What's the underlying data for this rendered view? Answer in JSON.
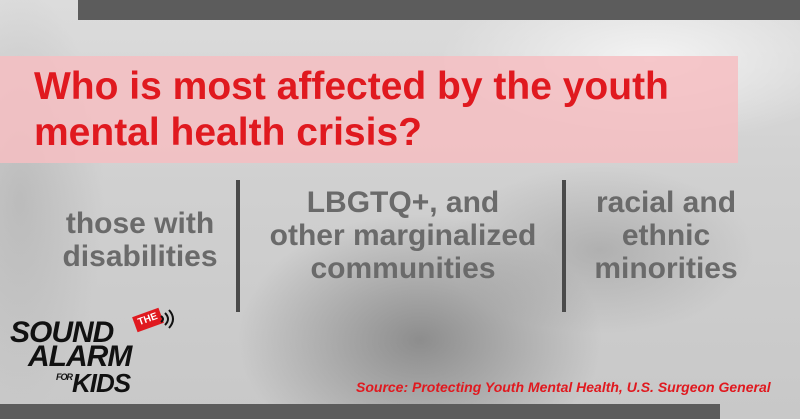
{
  "title": "Who is most affected by the youth mental health crisis?",
  "groups": [
    {
      "lines": [
        "those with",
        "disabilities"
      ]
    },
    {
      "lines": [
        "LBGTQ+, and",
        "other marginalized",
        "communities"
      ]
    },
    {
      "lines": [
        "racial and",
        "ethnic",
        "minorities"
      ]
    }
  ],
  "logo": {
    "the": "THE",
    "sound": "SOUND",
    "alarm": "ALARM",
    "for": "FOR",
    "kids": "KIDS"
  },
  "source": "Source: Protecting Youth Mental Health, U.S. Surgeon General",
  "colors": {
    "accent": "#e0191f",
    "band": "#f6bec2",
    "text_gray": "#6a6a6a",
    "bar_gray": "#5c5c5c"
  }
}
